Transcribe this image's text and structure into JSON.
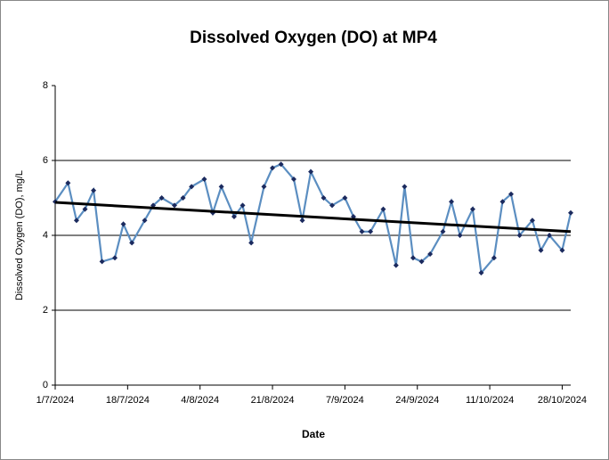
{
  "chart_data": {
    "type": "line",
    "title": "Dissolved Oxygen (DO) at MP4",
    "xlabel": "Date",
    "ylabel": "Dissolved Oxygen (DO), mg/L",
    "x": [
      "1/7/2024",
      "4/7/2024",
      "6/7/2024",
      "8/7/2024",
      "10/7/2024",
      "12/7/2024",
      "15/7/2024",
      "17/7/2024",
      "19/7/2024",
      "22/7/2024",
      "24/7/2024",
      "26/7/2024",
      "29/7/2024",
      "31/7/2024",
      "2/8/2024",
      "5/8/2024",
      "7/8/2024",
      "9/8/2024",
      "12/8/2024",
      "14/8/2024",
      "16/8/2024",
      "19/8/2024",
      "21/8/2024",
      "23/8/2024",
      "26/8/2024",
      "28/8/2024",
      "30/8/2024",
      "2/9/2024",
      "4/9/2024",
      "7/9/2024",
      "9/9/2024",
      "11/9/2024",
      "13/9/2024",
      "16/9/2024",
      "19/9/2024",
      "21/9/2024",
      "23/9/2024",
      "25/9/2024",
      "27/9/2024",
      "30/9/2024",
      "2/10/2024",
      "4/10/2024",
      "7/10/2024",
      "9/10/2024",
      "12/10/2024",
      "14/10/2024",
      "16/10/2024",
      "18/10/2024",
      "21/10/2024",
      "23/10/2024",
      "25/10/2024",
      "28/10/2024",
      "30/10/2024"
    ],
    "series": [
      {
        "name": "DO",
        "color": "#5b8ec1",
        "marker_color": "#1b2a5e",
        "values": [
          4.9,
          5.4,
          4.4,
          4.7,
          5.2,
          3.3,
          3.4,
          4.3,
          3.8,
          4.4,
          4.8,
          5.0,
          4.8,
          5.0,
          5.3,
          5.5,
          4.6,
          5.3,
          4.5,
          4.8,
          3.8,
          5.3,
          5.8,
          5.9,
          5.5,
          4.4,
          5.7,
          5.0,
          4.8,
          5.0,
          4.5,
          4.1,
          4.1,
          4.7,
          3.2,
          5.3,
          3.4,
          3.3,
          3.5,
          4.1,
          4.9,
          4.0,
          4.7,
          3.0,
          3.4,
          4.9,
          5.1,
          4.0,
          4.4,
          3.6,
          4.0,
          3.6,
          4.6
        ]
      }
    ],
    "trend": {
      "x": [
        "1/7/2024",
        "30/10/2024"
      ],
      "values": [
        4.88,
        4.1
      ],
      "color": "#000000"
    },
    "xlim": [
      "1/7/2024",
      "30/10/2024"
    ],
    "xticks": [
      "1/7/2024",
      "18/7/2024",
      "4/8/2024",
      "21/8/2024",
      "7/9/2024",
      "24/9/2024",
      "11/10/2024",
      "28/10/2024"
    ],
    "ylim": [
      0,
      8
    ],
    "yticks": [
      0,
      2,
      4,
      6,
      8
    ],
    "grid": true
  }
}
